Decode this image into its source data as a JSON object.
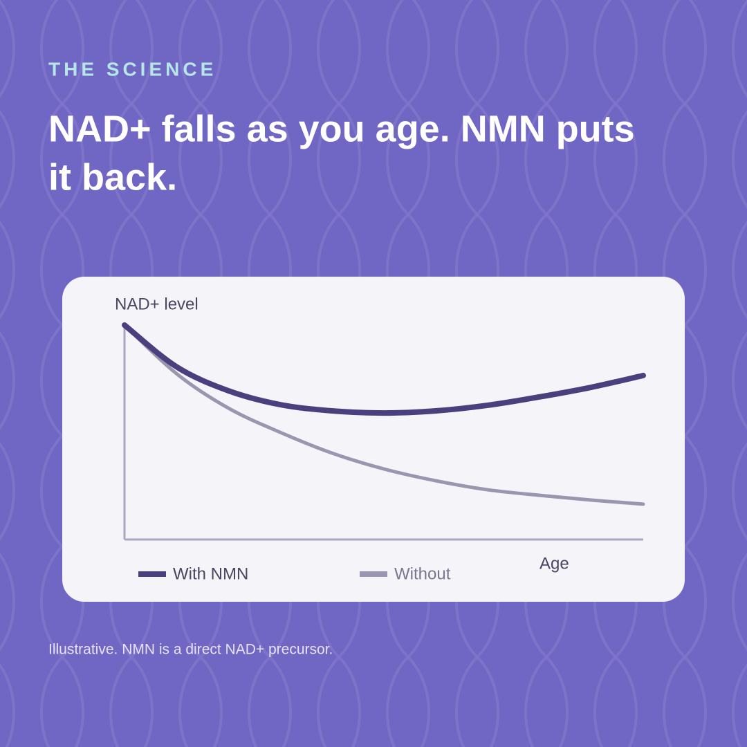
{
  "chart_data": {
    "type": "line",
    "eyebrow": "THE SCIENCE",
    "title_lines": [
      "NAD+ falls as you age. NMN puts",
      "it back."
    ],
    "ylabel": "NAD+ level",
    "xlabel": "Age",
    "note": "Illustrative. NMN is a direct NAD+ precursor.",
    "x": [
      0,
      1,
      2,
      3,
      4,
      5,
      6,
      7,
      8,
      9,
      10
    ],
    "xlim": [
      0,
      10
    ],
    "ylim": [
      0,
      100
    ],
    "series": [
      {
        "name": "With NMN",
        "color": "#4b3f7e",
        "values": [
          100,
          80.6,
          69.4,
          62.9,
          60,
          59,
          60,
          62.6,
          66.5,
          71,
          76.5
        ]
      },
      {
        "name": "Without",
        "color": "#9a96b0",
        "values": [
          100,
          77.4,
          61.3,
          50,
          40.3,
          32.9,
          27.4,
          23.2,
          20.6,
          18.4,
          16.5
        ]
      }
    ]
  }
}
